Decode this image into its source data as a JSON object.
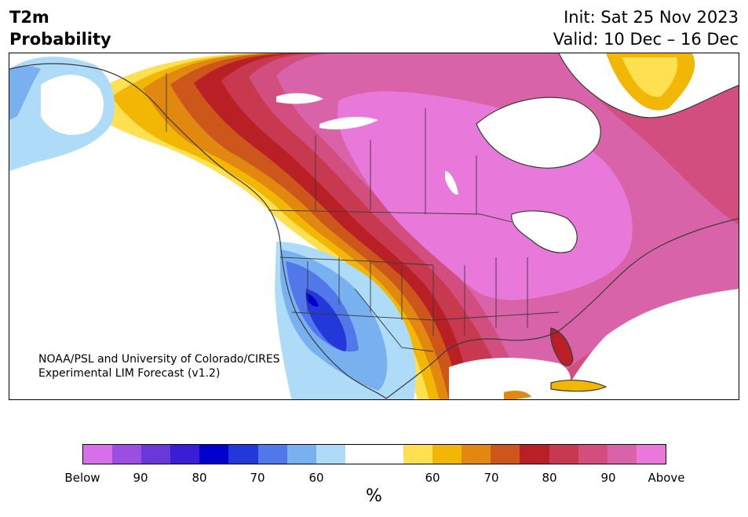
{
  "header": {
    "title_line1": "T2m",
    "title_line2": "Probability",
    "init": "Init: Sat 25 Nov 2023",
    "valid": "Valid: 10 Dec – 16 Dec"
  },
  "credit": {
    "line1": "NOAA/PSL and University of Colorado/CIRES",
    "line2": "Experimental LIM Forecast (v1.2)"
  },
  "colorbar": {
    "colors": [
      "#d670e8",
      "#9a4fe0",
      "#6b38d8",
      "#3a1ed6",
      "#0000cc",
      "#2238d8",
      "#5277e8",
      "#79b0f0",
      "#aedbf8",
      "#ffffff",
      "#ffffff",
      "#ffe050",
      "#f2b705",
      "#e0880f",
      "#cd561a",
      "#b82025",
      "#c8384f",
      "#d24e7e",
      "#d963a8",
      "#e878d9"
    ],
    "labels": [
      "Below",
      "90",
      "80",
      "70",
      "60",
      "60",
      "70",
      "80",
      "90",
      "Above"
    ],
    "unit": "%"
  },
  "map": {
    "region": "North America",
    "variable": "2m temperature tercile probability",
    "outline_color": "#3a3a3a"
  }
}
